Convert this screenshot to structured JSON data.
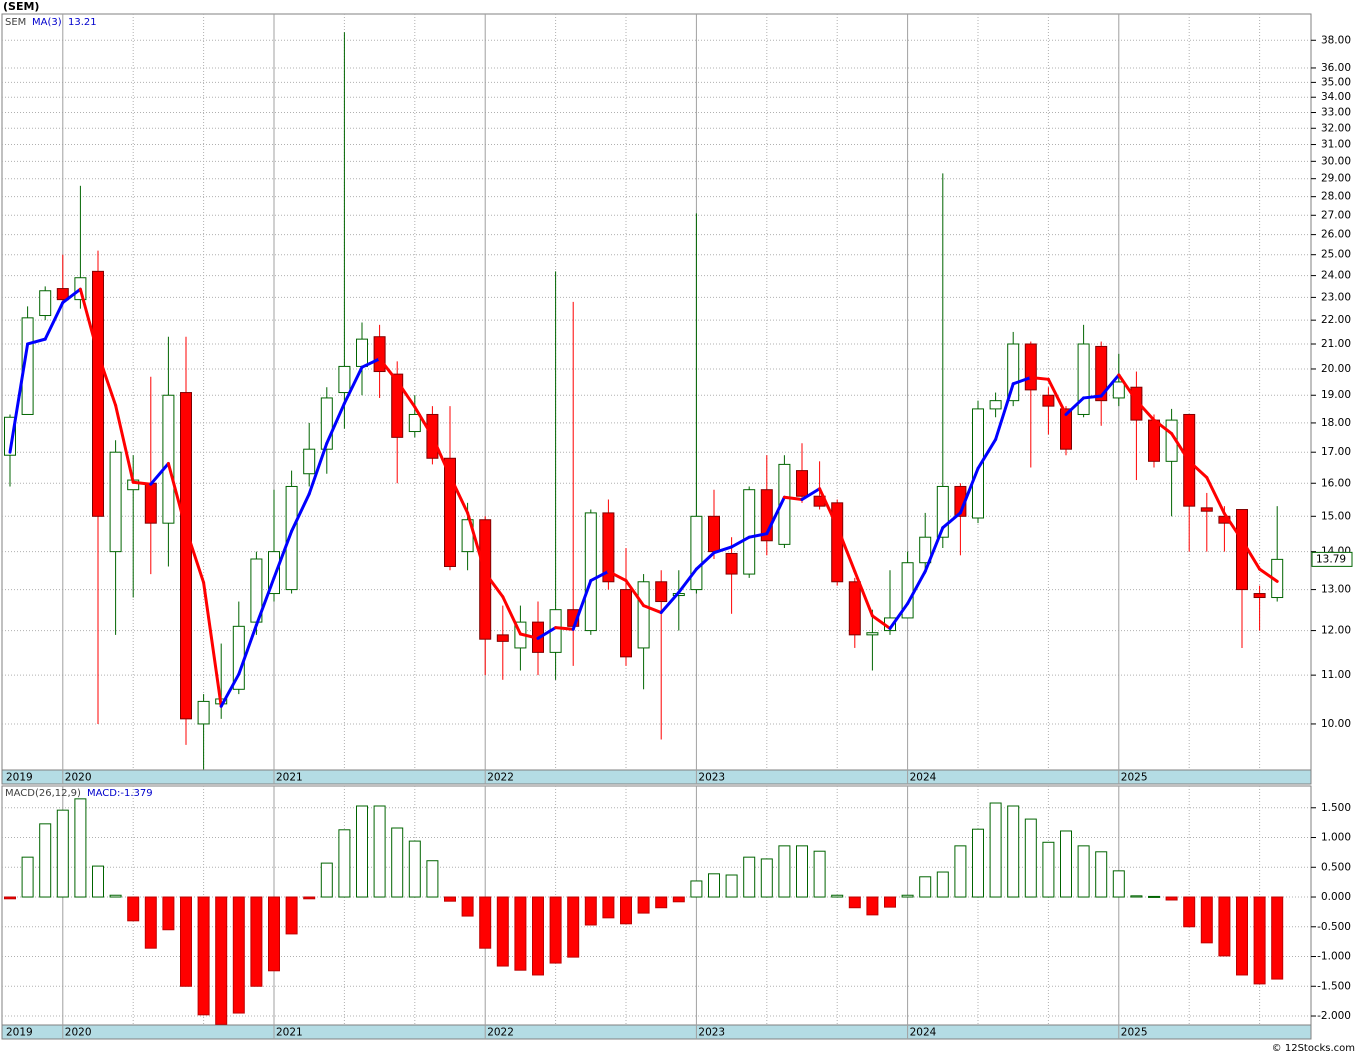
{
  "header": {
    "title": "(SEM)"
  },
  "chart_data": [
    {
      "type": "candlestick",
      "legend_symbol": "SEM",
      "categories": [
        "2019",
        null,
        null,
        "2020",
        null,
        null,
        null,
        null,
        null,
        null,
        null,
        null,
        null,
        null,
        null,
        "2021",
        null,
        null,
        null,
        null,
        null,
        null,
        null,
        null,
        null,
        null,
        null,
        "2022",
        null,
        null,
        null,
        null,
        null,
        null,
        null,
        null,
        null,
        null,
        null,
        "2023",
        null,
        null,
        null,
        null,
        null,
        null,
        null,
        null,
        null,
        null,
        null,
        "2024",
        null,
        null,
        null,
        null,
        null,
        null,
        null,
        null,
        null,
        null,
        null,
        "2025",
        null,
        null,
        null,
        null,
        null,
        null,
        null,
        null,
        null
      ],
      "open": [
        16.9,
        18.3,
        22.2,
        23.4,
        22.9,
        24.2,
        14.0,
        15.8,
        16.0,
        14.8,
        19.1,
        10.0,
        10.4,
        10.7,
        12.2,
        12.9,
        13.0,
        16.3,
        17.1,
        19.1,
        20.1,
        21.3,
        19.8,
        17.7,
        18.3,
        16.8,
        14.0,
        14.9,
        11.9,
        11.6,
        12.2,
        11.5,
        12.5,
        12.0,
        15.1,
        13.0,
        11.6,
        13.2,
        12.85,
        13.0,
        15.0,
        13.95,
        13.4,
        15.8,
        14.2,
        16.4,
        15.6,
        15.4,
        13.2,
        11.9,
        12.0,
        12.3,
        13.7,
        14.4,
        15.9,
        14.95,
        18.5,
        18.8,
        21.0,
        19.0,
        18.5,
        18.3,
        20.9,
        18.9,
        19.3,
        18.1,
        16.7,
        18.3,
        15.25,
        15.0,
        15.2,
        12.9,
        12.8
      ],
      "high": [
        18.3,
        22.6,
        23.5,
        25.0,
        28.6,
        25.2,
        17.4,
        16.9,
        19.7,
        21.3,
        21.3,
        10.6,
        11.7,
        12.7,
        14.0,
        15.8,
        16.4,
        18.0,
        19.3,
        38.6,
        21.9,
        21.8,
        20.3,
        19.0,
        18.6,
        18.6,
        15.4,
        15.0,
        12.6,
        12.6,
        12.7,
        24.2,
        22.8,
        15.2,
        15.5,
        14.1,
        13.4,
        13.5,
        13.5,
        27.1,
        15.8,
        14.4,
        15.9,
        16.9,
        16.9,
        17.3,
        16.7,
        15.5,
        13.3,
        12.5,
        13.5,
        14.0,
        15.1,
        29.3,
        16.0,
        18.8,
        19.1,
        21.5,
        21.1,
        19.3,
        18.6,
        21.8,
        21.1,
        20.6,
        19.9,
        18.3,
        18.5,
        18.3,
        15.7,
        15.3,
        15.2,
        13.1,
        15.3
      ],
      "low": [
        15.9,
        18.3,
        22.0,
        22.7,
        22.5,
        10.0,
        11.9,
        12.8,
        13.4,
        13.6,
        9.6,
        9.15,
        10.1,
        10.6,
        11.9,
        12.7,
        12.9,
        15.9,
        16.3,
        17.8,
        19.0,
        18.9,
        16.0,
        17.5,
        16.6,
        13.5,
        13.5,
        11.0,
        10.9,
        11.1,
        11.0,
        10.9,
        11.2,
        11.9,
        13.0,
        11.2,
        10.7,
        9.7,
        12.0,
        12.9,
        13.8,
        12.4,
        13.3,
        13.9,
        14.1,
        15.4,
        15.2,
        13.1,
        11.6,
        11.1,
        11.9,
        12.3,
        13.4,
        14.1,
        13.9,
        14.8,
        18.2,
        18.6,
        16.5,
        17.6,
        16.9,
        18.2,
        17.9,
        18.6,
        16.1,
        16.5,
        15.0,
        14.0,
        14.0,
        14.0,
        11.6,
        12.0,
        12.7
      ],
      "close": [
        18.2,
        22.1,
        23.3,
        22.9,
        23.9,
        15.0,
        17.0,
        16.1,
        14.8,
        19.0,
        10.1,
        10.45,
        10.5,
        12.1,
        13.8,
        14.0,
        15.9,
        17.1,
        18.9,
        20.1,
        21.2,
        19.9,
        17.5,
        18.3,
        16.8,
        13.6,
        14.9,
        11.8,
        11.75,
        12.2,
        11.5,
        12.5,
        12.1,
        15.1,
        13.2,
        11.4,
        13.2,
        12.7,
        12.9,
        15.0,
        14.0,
        13.4,
        15.8,
        14.3,
        16.6,
        15.6,
        15.3,
        13.2,
        11.9,
        11.95,
        12.3,
        13.7,
        14.4,
        15.9,
        15.0,
        18.5,
        18.8,
        21.0,
        19.2,
        18.6,
        17.1,
        21.0,
        18.8,
        19.5,
        18.1,
        16.7,
        18.1,
        15.3,
        15.15,
        14.8,
        13.0,
        12.8,
        13.79
      ],
      "up_color": "#006400",
      "down_color": "#ff0000",
      "ma": {
        "name": "MA(3)",
        "up_color": "#0000ff",
        "down_color": "#ff0000",
        "values": [
          17.0,
          21.0,
          21.2,
          22.77,
          23.37,
          20.6,
          18.63,
          16.03,
          15.97,
          16.63,
          14.63,
          13.18,
          10.35,
          11.02,
          12.13,
          13.3,
          14.57,
          15.67,
          17.3,
          18.7,
          20.07,
          20.4,
          19.53,
          18.57,
          17.53,
          16.23,
          15.1,
          13.43,
          12.82,
          11.92,
          11.82,
          12.07,
          12.03,
          13.23,
          13.47,
          13.23,
          12.6,
          12.43,
          12.93,
          13.53,
          13.97,
          14.13,
          14.4,
          14.5,
          15.57,
          15.5,
          15.83,
          14.7,
          13.47,
          12.35,
          12.05,
          12.65,
          13.47,
          14.67,
          15.1,
          16.47,
          17.43,
          19.43,
          19.67,
          19.6,
          18.3,
          18.9,
          18.97,
          19.77,
          18.8,
          18.1,
          17.63,
          16.7,
          16.18,
          15.08,
          14.32,
          13.53,
          13.21
        ]
      },
      "log_scale": true,
      "ylim": [
        9.14,
        40
      ],
      "yticks": [
        {
          "value": 10,
          "label": "10.00"
        },
        {
          "value": 11,
          "label": "11.00"
        },
        {
          "value": 12,
          "label": "12.00"
        },
        {
          "value": 13,
          "label": "13.00"
        },
        {
          "value": 14,
          "label": "14.00"
        },
        {
          "value": 15,
          "label": "15.00"
        },
        {
          "value": 16,
          "label": "16.00"
        },
        {
          "value": 17,
          "label": "17.00"
        },
        {
          "value": 18,
          "label": "18.00"
        },
        {
          "value": 19,
          "label": "19.00"
        },
        {
          "value": 20,
          "label": "20.00"
        },
        {
          "value": 21,
          "label": "21.00"
        },
        {
          "value": 22,
          "label": "22.00"
        },
        {
          "value": 23,
          "label": "23.00"
        },
        {
          "value": 24,
          "label": "24.00"
        },
        {
          "value": 25,
          "label": "25.00"
        },
        {
          "value": 26,
          "label": "26.00"
        },
        {
          "value": 27,
          "label": "27.00"
        },
        {
          "value": 28,
          "label": "28.00"
        },
        {
          "value": 29,
          "label": "29.00"
        },
        {
          "value": 30,
          "label": "30.00"
        },
        {
          "value": 31,
          "label": "31.00"
        },
        {
          "value": 32,
          "label": "32.00"
        },
        {
          "value": 33,
          "label": "33.00"
        },
        {
          "value": 34,
          "label": "34.00"
        },
        {
          "value": 35,
          "label": "35.00"
        },
        {
          "value": 36,
          "label": "36.00"
        },
        {
          "value": 38,
          "label": "38.00"
        }
      ],
      "grid": true
    },
    {
      "type": "bar",
      "name": "MACD(26,12,9)",
      "value_name": "MACD:",
      "categories": [
        "2019",
        null,
        null,
        "2020",
        null,
        null,
        null,
        null,
        null,
        null,
        null,
        null,
        null,
        null,
        null,
        "2021",
        null,
        null,
        null,
        null,
        null,
        null,
        null,
        null,
        null,
        null,
        null,
        "2022",
        null,
        null,
        null,
        null,
        null,
        null,
        null,
        null,
        null,
        null,
        null,
        "2023",
        null,
        null,
        null,
        null,
        null,
        null,
        null,
        null,
        null,
        null,
        null,
        "2024",
        null,
        null,
        null,
        null,
        null,
        null,
        null,
        null,
        null,
        null,
        null,
        "2025",
        null,
        null,
        null,
        null,
        null,
        null,
        null,
        null,
        null
      ],
      "values": [
        -0.03,
        0.67,
        1.23,
        1.46,
        1.65,
        0.52,
        0.03,
        -0.4,
        -0.86,
        -0.55,
        -1.5,
        -1.98,
        -2.14,
        -1.95,
        -1.5,
        -1.24,
        -0.62,
        -0.03,
        0.57,
        1.13,
        1.53,
        1.53,
        1.16,
        0.94,
        0.61,
        -0.07,
        -0.32,
        -0.86,
        -1.16,
        -1.23,
        -1.31,
        -1.11,
        -1.01,
        -0.47,
        -0.35,
        -0.45,
        -0.27,
        -0.18,
        -0.08,
        0.27,
        0.39,
        0.37,
        0.67,
        0.64,
        0.86,
        0.86,
        0.77,
        0.03,
        -0.18,
        -0.3,
        -0.17,
        0.03,
        0.34,
        0.42,
        0.86,
        1.14,
        1.58,
        1.53,
        1.31,
        0.92,
        1.11,
        0.86,
        0.76,
        0.44,
        0.02,
        0.01,
        -0.05,
        -0.5,
        -0.77,
        -0.99,
        -1.31,
        -1.46,
        -1.379
      ],
      "up_color": "#006400",
      "down_color": "#ff0000",
      "ylim": [
        -2.151,
        1.866
      ],
      "yticks": [
        {
          "value": 1.5,
          "label": "1.500"
        },
        {
          "value": 1,
          "label": "1.000"
        },
        {
          "value": 0.5,
          "label": "0.500"
        },
        {
          "value": 0,
          "label": "0.000"
        },
        {
          "value": -0.5,
          "label": "-0.500"
        },
        {
          "value": -1,
          "label": "-1.000"
        },
        {
          "value": -1.5,
          "label": "-1.500"
        },
        {
          "value": -2,
          "label": "-2.000"
        }
      ],
      "grid": true
    }
  ],
  "footer": {
    "text": "© 12Stocks.com"
  }
}
